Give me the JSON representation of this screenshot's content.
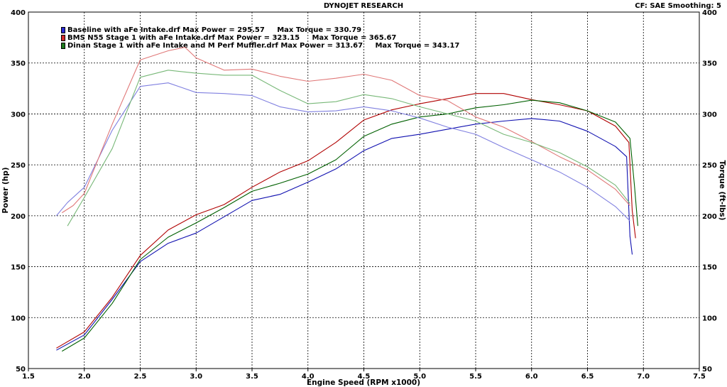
{
  "header": {
    "title": "DYNOJET RESEARCH",
    "cf_info": "CF: SAE  Smoothing: 5"
  },
  "legend": [
    {
      "text": "Baseline with aFe Intake.drf Max Power = 295.57     Max Torque = 330.79",
      "color": "#2a2ad6"
    },
    {
      "text": "BMS N55 Stage 1 with aFe Intake.drf Max Power = 323.15     Max Torque = 365.67",
      "color": "#d42a2a"
    },
    {
      "text": "Dinan Stage 1 with aFe Intake and M Perf Muffler.drf Max Power = 313.67     Max Torque = 343.17",
      "color": "#1e7a1e"
    }
  ],
  "chart_data": {
    "type": "line",
    "title": "DYNOJET RESEARCH",
    "xlabel": "Engine Speed (RPM x1000)",
    "ylabel": "Power (hp)",
    "y2label": "Torque (ft-lbs)",
    "xlim": [
      1.5,
      7.5
    ],
    "ylim": [
      50,
      400
    ],
    "y2lim": [
      50,
      400
    ],
    "x_ticks": [
      "1.5",
      "2.0",
      "2.5",
      "3.0",
      "3.5",
      "4.0",
      "4.5",
      "5.0",
      "5.5",
      "6.0",
      "6.5",
      "7.0",
      "7.5"
    ],
    "y_ticks": [
      "50",
      "100",
      "150",
      "200",
      "250",
      "300",
      "350",
      "400"
    ],
    "grid": true,
    "legend_position": "top-left",
    "series": [
      {
        "name": "Baseline with aFe Intake.drf",
        "kind": "power",
        "color": "#1010b0",
        "x": [
          1.75,
          2.0,
          2.25,
          2.5,
          2.75,
          3.0,
          3.25,
          3.5,
          3.75,
          4.0,
          4.25,
          4.5,
          4.75,
          5.0,
          5.25,
          5.5,
          5.75,
          6.0,
          6.25,
          6.5,
          6.75,
          6.85,
          6.88,
          6.9
        ],
        "y": [
          68,
          83,
          118,
          155,
          173,
          183,
          199,
          215,
          221,
          233,
          246,
          264,
          276,
          280,
          285,
          290,
          293,
          295.5,
          293,
          283,
          268,
          258,
          180,
          162
        ]
      },
      {
        "name": "BMS N55 Stage 1 with aFe Intake.drf",
        "kind": "power",
        "color": "#b00000",
        "x": [
          1.75,
          2.0,
          2.25,
          2.5,
          2.75,
          3.0,
          3.25,
          3.5,
          3.75,
          4.0,
          4.25,
          4.5,
          4.75,
          5.0,
          5.25,
          5.5,
          5.75,
          6.0,
          6.25,
          6.5,
          6.75,
          6.87,
          6.9,
          6.93
        ],
        "y": [
          70,
          86,
          120,
          161,
          186,
          201,
          211,
          228,
          243,
          254,
          272,
          294,
          304,
          310,
          315,
          320,
          320,
          314,
          309,
          303,
          288,
          272,
          205,
          178
        ]
      },
      {
        "name": "Dinan Stage 1 with aFe Intake and M Perf Muffler.drf",
        "kind": "power",
        "color": "#006000",
        "x": [
          1.8,
          2.0,
          2.25,
          2.5,
          2.75,
          3.0,
          3.25,
          3.5,
          3.75,
          4.0,
          4.25,
          4.5,
          4.75,
          5.0,
          5.25,
          5.5,
          5.75,
          6.0,
          6.25,
          6.5,
          6.75,
          6.88,
          6.92,
          6.95
        ],
        "y": [
          67,
          80,
          114,
          157,
          179,
          193,
          208,
          224,
          232,
          241,
          255,
          278,
          290,
          297,
          300,
          306,
          309,
          313.5,
          311,
          303,
          292,
          276,
          230,
          190
        ]
      },
      {
        "name": "Baseline with aFe Intake.drf",
        "kind": "torque",
        "color": "#8080e0",
        "x": [
          1.75,
          1.85,
          2.0,
          2.25,
          2.5,
          2.75,
          3.0,
          3.25,
          3.5,
          3.75,
          4.0,
          4.25,
          4.5,
          4.75,
          5.0,
          5.25,
          5.5,
          5.75,
          6.0,
          6.25,
          6.5,
          6.75,
          6.88
        ],
        "y": [
          200,
          213,
          228,
          284,
          327,
          330.5,
          321,
          320,
          318,
          307,
          302,
          303,
          307,
          303,
          296,
          287,
          280,
          267,
          255,
          243,
          228,
          209,
          195
        ]
      },
      {
        "name": "BMS N55 Stage 1 with aFe Intake.drf",
        "kind": "torque",
        "color": "#e07878",
        "x": [
          1.8,
          1.9,
          2.0,
          2.25,
          2.5,
          2.75,
          2.9,
          3.0,
          3.25,
          3.5,
          3.75,
          4.0,
          4.25,
          4.5,
          4.75,
          5.0,
          5.25,
          5.5,
          5.75,
          6.0,
          6.25,
          6.5,
          6.75,
          6.88
        ],
        "y": [
          203,
          210,
          222,
          290,
          353,
          362,
          365.5,
          355,
          343,
          344,
          337,
          332,
          335,
          339,
          333,
          318,
          313,
          297,
          287,
          273,
          258,
          245,
          226,
          210
        ]
      },
      {
        "name": "Dinan Stage 1 with aFe Intake and M Perf Muffler.drf",
        "kind": "torque",
        "color": "#78b878",
        "x": [
          1.85,
          2.0,
          2.25,
          2.5,
          2.75,
          3.0,
          3.25,
          3.5,
          3.75,
          4.0,
          4.25,
          4.5,
          4.75,
          5.0,
          5.25,
          5.5,
          5.75,
          6.0,
          6.25,
          6.5,
          6.75,
          6.88
        ],
        "y": [
          190,
          218,
          266,
          336,
          343,
          340,
          338,
          338,
          323,
          310,
          312,
          319,
          315,
          307,
          300,
          293,
          280,
          272,
          262,
          248,
          230,
          212
        ]
      }
    ]
  }
}
